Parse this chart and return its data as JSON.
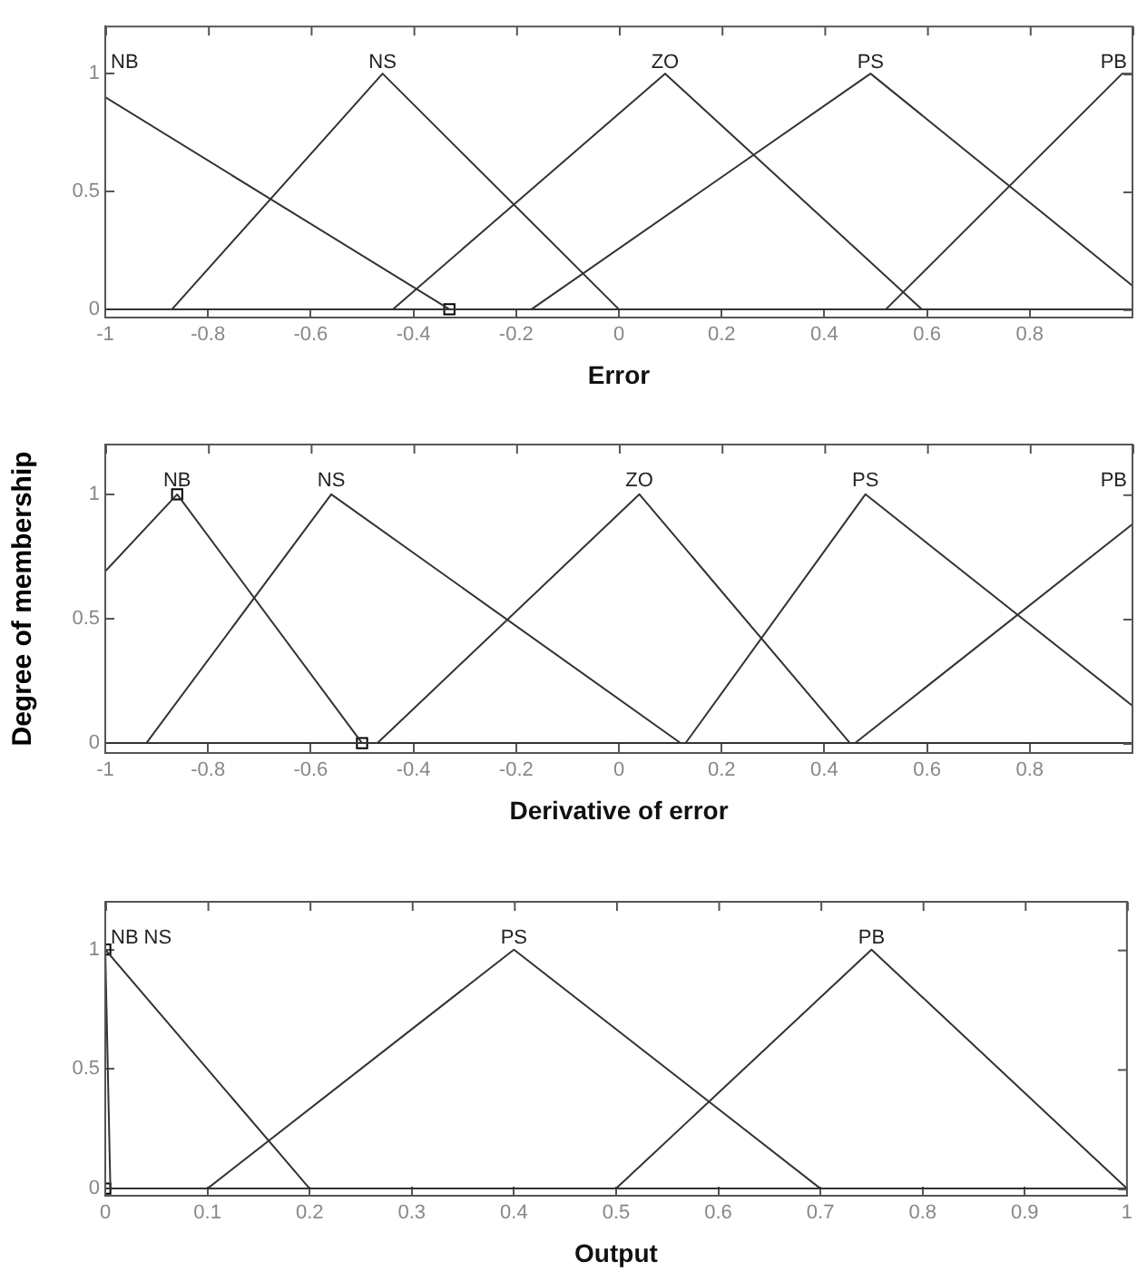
{
  "chart_data": [
    {
      "type": "line",
      "xlabel": "Error",
      "xlim": [
        -1,
        1
      ],
      "xticks": [
        -1,
        -0.8,
        -0.6,
        -0.4,
        -0.2,
        0,
        0.2,
        0.4,
        0.6,
        0.8,
        {
          "value": 1,
          "label": null
        }
      ],
      "ylim": [
        -0.035,
        1.2
      ],
      "yticks": [
        0,
        0.5,
        1
      ],
      "grid": false,
      "legend": false,
      "marker": "none",
      "series": [
        {
          "name": "NB",
          "color": "#333333",
          "x": [
            -1,
            -0.33,
            1
          ],
          "values": [
            0.9,
            0,
            0
          ]
        },
        {
          "name": "NS",
          "color": "#333333",
          "x": [
            -1,
            -0.87,
            -0.46,
            0,
            1
          ],
          "values": [
            0,
            0,
            1,
            0,
            0
          ]
        },
        {
          "name": "ZO",
          "color": "#333333",
          "x": [
            -1,
            -0.44,
            0.09,
            0.59,
            1
          ],
          "values": [
            0,
            0,
            1,
            0,
            0
          ]
        },
        {
          "name": "PS",
          "color": "#333333",
          "x": [
            -1,
            -0.17,
            0.49,
            1
          ],
          "values": [
            0,
            0,
            1,
            0.1
          ]
        },
        {
          "name": "PB",
          "color": "#333333",
          "x": [
            -1,
            0.52,
            0.98,
            1
          ],
          "values": [
            0,
            0,
            1,
            1
          ]
        },
        {
          "type": "scatter",
          "marker": "square",
          "color": "#000000",
          "x": [
            -0.33
          ],
          "values": [
            0
          ]
        }
      ]
    },
    {
      "type": "line",
      "xlabel": "Derivative of error",
      "ylabel": "Degree of membership",
      "xlim": [
        -1,
        1
      ],
      "xticks": [
        -1,
        -0.8,
        -0.6,
        -0.4,
        -0.2,
        0,
        0.2,
        0.4,
        0.6,
        0.8,
        {
          "value": 1,
          "label": null
        }
      ],
      "ylim": [
        -0.04,
        1.2
      ],
      "yticks": [
        0,
        0.5,
        1
      ],
      "grid": false,
      "legend": false,
      "marker": "none",
      "series": [
        {
          "name": "NB",
          "color": "#333333",
          "x": [
            -1,
            -0.86,
            -0.5,
            1
          ],
          "values": [
            0.69,
            1,
            0,
            0
          ]
        },
        {
          "name": "NS",
          "color": "#333333",
          "x": [
            -1,
            -0.92,
            -0.56,
            0.12,
            1
          ],
          "values": [
            0,
            0,
            1,
            0,
            0
          ]
        },
        {
          "name": "ZO",
          "color": "#333333",
          "x": [
            -1,
            -0.47,
            0.04,
            0.45,
            1
          ],
          "values": [
            0,
            0,
            1,
            0,
            0
          ]
        },
        {
          "name": "PS",
          "color": "#333333",
          "x": [
            -1,
            0.13,
            0.48,
            1
          ],
          "values": [
            0,
            0,
            1,
            0.15
          ]
        },
        {
          "name": "PB",
          "color": "#333333",
          "x": [
            -1,
            0.46,
            1
          ],
          "values": [
            0,
            0,
            0.88
          ]
        },
        {
          "type": "scatter",
          "marker": "square",
          "color": "#000000",
          "x": [
            -0.86,
            -0.5
          ],
          "values": [
            1,
            0
          ]
        }
      ]
    },
    {
      "type": "line",
      "xlabel": "Output",
      "xlim": [
        0,
        1
      ],
      "xticks": [
        0,
        0.1,
        0.2,
        0.3,
        0.4,
        0.5,
        0.6,
        0.7,
        0.8,
        0.9,
        1
      ],
      "ylim": [
        -0.03,
        1.2
      ],
      "yticks": [
        0,
        0.5,
        1
      ],
      "grid": false,
      "legend": false,
      "marker": "none",
      "series": [
        {
          "name": "NB",
          "color": "#333333",
          "x": [
            0,
            0.005,
            1
          ],
          "values": [
            1,
            0,
            0
          ]
        },
        {
          "name": "NS",
          "color": "#333333",
          "x": [
            0,
            0.2,
            1
          ],
          "values": [
            1,
            0,
            0
          ]
        },
        {
          "name": "PS",
          "color": "#333333",
          "x": [
            0,
            0.1,
            0.4,
            0.7,
            1
          ],
          "values": [
            0,
            0,
            1,
            0,
            0
          ]
        },
        {
          "name": "PB",
          "color": "#333333",
          "x": [
            0,
            0.5,
            0.75,
            1
          ],
          "values": [
            0,
            0,
            1,
            0
          ]
        },
        {
          "type": "scatter",
          "marker": "square",
          "color": "#000000",
          "x": [
            0,
            0
          ],
          "values": [
            1,
            0
          ]
        }
      ]
    }
  ]
}
